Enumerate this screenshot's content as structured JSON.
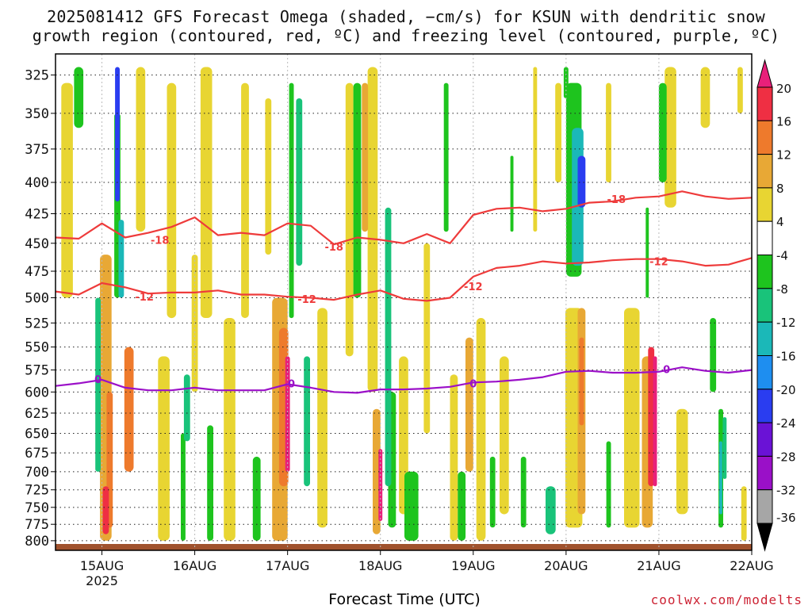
{
  "chart_data": {
    "type": "heatmap",
    "title_lines": [
      "2025081412 GFS Forecast Omega (shaded, −cm/s) for KSUN with dendritic snow",
      "growth region (contoured, red, ºC) and freezing level (contoured, purple, ºC)"
    ],
    "xlabel": "Forecast Time (UTC)",
    "credit": "coolwx.com/modelts",
    "x_ticks": [
      {
        "label": "15AUG",
        "sub": "2025",
        "t": 12
      },
      {
        "label": "16AUG",
        "sub": "",
        "t": 36
      },
      {
        "label": "17AUG",
        "sub": "",
        "t": 60
      },
      {
        "label": "18AUG",
        "sub": "",
        "t": 84
      },
      {
        "label": "19AUG",
        "sub": "",
        "t": 108
      },
      {
        "label": "20AUG",
        "sub": "",
        "t": 132
      },
      {
        "label": "21AUG",
        "sub": "",
        "t": 156
      },
      {
        "label": "22AUG",
        "sub": "",
        "t": 180
      }
    ],
    "x_range_hours": [
      0,
      180
    ],
    "y_range_hpa": [
      312,
      815
    ],
    "y_ticks": [
      325,
      350,
      375,
      400,
      425,
      450,
      475,
      500,
      525,
      550,
      575,
      600,
      625,
      650,
      675,
      700,
      725,
      750,
      775,
      800
    ],
    "colorbar": {
      "labels": [
        "20",
        "16",
        "12",
        "8",
        "4",
        "-4",
        "-8",
        "-12",
        "-16",
        "-20",
        "-24",
        "-28",
        "-32",
        "-36"
      ],
      "bins": [
        {
          "low": 16,
          "high": 20,
          "color": "#ef2f43"
        },
        {
          "low": 12,
          "high": 16,
          "color": "#ee7a2c"
        },
        {
          "low": 8,
          "high": 12,
          "color": "#e8a835"
        },
        {
          "low": 4,
          "high": 8,
          "color": "#e8d532"
        },
        {
          "low": -4,
          "high": 4,
          "color": "#ffffff"
        },
        {
          "low": -8,
          "high": -4,
          "color": "#1ec41e"
        },
        {
          "low": -12,
          "high": -8,
          "color": "#19c37a"
        },
        {
          "low": -16,
          "high": -12,
          "color": "#1bb8b8"
        },
        {
          "low": -20,
          "high": -16,
          "color": "#1e8ef0"
        },
        {
          "low": -24,
          "high": -20,
          "color": "#2a3df0"
        },
        {
          "low": -28,
          "high": -24,
          "color": "#6a12d6"
        },
        {
          "low": -32,
          "high": -28,
          "color": "#9a10c8"
        },
        {
          "low": -36,
          "high": -32,
          "color": "#a6a6a6"
        }
      ],
      "over_color": "#e8207a",
      "under_color": "#000000"
    },
    "shaded_features": [
      {
        "t": 13,
        "p1": 460,
        "p2": 800,
        "w": 1.5,
        "v": 8
      },
      {
        "t": 13,
        "p1": 720,
        "p2": 790,
        "w": 0.8,
        "v": 18
      },
      {
        "t": 14,
        "p1": 600,
        "p2": 780,
        "w": 0.8,
        "v": 14
      },
      {
        "t": 11,
        "p1": 500,
        "p2": 700,
        "w": 0.7,
        "v": -10
      },
      {
        "t": 16,
        "p1": 320,
        "p2": 415,
        "w": 0.6,
        "v": -22
      },
      {
        "t": 16,
        "p1": 350,
        "p2": 500,
        "w": 0.8,
        "v": -8
      },
      {
        "t": 17,
        "p1": 430,
        "p2": 500,
        "w": 0.7,
        "v": -14
      },
      {
        "t": 19,
        "p1": 550,
        "p2": 700,
        "w": 1.2,
        "v": 12
      },
      {
        "t": 6,
        "p1": 320,
        "p2": 360,
        "w": 1.2,
        "v": -6
      },
      {
        "t": 3,
        "p1": 330,
        "p2": 500,
        "w": 1.5,
        "v": 5
      },
      {
        "t": 22,
        "p1": 320,
        "p2": 440,
        "w": 1.2,
        "v": 5
      },
      {
        "t": 28,
        "p1": 560,
        "p2": 800,
        "w": 1.5,
        "v": 5
      },
      {
        "t": 30,
        "p1": 330,
        "p2": 520,
        "w": 1.2,
        "v": 6
      },
      {
        "t": 33,
        "p1": 650,
        "p2": 800,
        "w": 0.6,
        "v": -6
      },
      {
        "t": 34,
        "p1": 580,
        "p2": 660,
        "w": 0.8,
        "v": -10
      },
      {
        "t": 39,
        "p1": 320,
        "p2": 520,
        "w": 1.5,
        "v": 5
      },
      {
        "t": 40,
        "p1": 640,
        "p2": 800,
        "w": 0.8,
        "v": -8
      },
      {
        "t": 36,
        "p1": 460,
        "p2": 600,
        "w": 0.8,
        "v": 6
      },
      {
        "t": 45,
        "p1": 520,
        "p2": 800,
        "w": 1.5,
        "v": 5
      },
      {
        "t": 49,
        "p1": 330,
        "p2": 520,
        "w": 1.0,
        "v": 5
      },
      {
        "t": 52,
        "p1": 680,
        "p2": 800,
        "w": 1.0,
        "v": -6
      },
      {
        "t": 55,
        "p1": 340,
        "p2": 460,
        "w": 0.8,
        "v": 5
      },
      {
        "t": 58,
        "p1": 500,
        "p2": 800,
        "w": 2.0,
        "v": 10
      },
      {
        "t": 59,
        "p1": 530,
        "p2": 720,
        "w": 1.2,
        "v": 14
      },
      {
        "t": 60,
        "p1": 560,
        "p2": 700,
        "w": 0.6,
        "v": 20
      },
      {
        "t": 61,
        "p1": 330,
        "p2": 520,
        "w": 0.6,
        "v": -6
      },
      {
        "t": 63,
        "p1": 340,
        "p2": 470,
        "w": 0.8,
        "v": -10
      },
      {
        "t": 65,
        "p1": 560,
        "p2": 720,
        "w": 0.8,
        "v": -10
      },
      {
        "t": 69,
        "p1": 510,
        "p2": 780,
        "w": 1.3,
        "v": 5
      },
      {
        "t": 76,
        "p1": 330,
        "p2": 560,
        "w": 1.0,
        "v": 5
      },
      {
        "t": 78,
        "p1": 330,
        "p2": 500,
        "w": 1.0,
        "v": -6
      },
      {
        "t": 80,
        "p1": 330,
        "p2": 440,
        "w": 0.8,
        "v": 8
      },
      {
        "t": 82,
        "p1": 320,
        "p2": 600,
        "w": 1.3,
        "v": 6
      },
      {
        "t": 83,
        "p1": 620,
        "p2": 790,
        "w": 1.0,
        "v": 10
      },
      {
        "t": 84,
        "p1": 670,
        "p2": 770,
        "w": 0.5,
        "v": 20
      },
      {
        "t": 86,
        "p1": 420,
        "p2": 720,
        "w": 0.8,
        "v": -12
      },
      {
        "t": 87,
        "p1": 600,
        "p2": 780,
        "w": 1.0,
        "v": -8
      },
      {
        "t": 90,
        "p1": 560,
        "p2": 760,
        "w": 1.2,
        "v": 5
      },
      {
        "t": 92,
        "p1": 700,
        "p2": 800,
        "w": 1.8,
        "v": -6
      },
      {
        "t": 96,
        "p1": 450,
        "p2": 650,
        "w": 0.8,
        "v": 5
      },
      {
        "t": 101,
        "p1": 330,
        "p2": 440,
        "w": 0.6,
        "v": -6
      },
      {
        "t": 103,
        "p1": 580,
        "p2": 800,
        "w": 1.0,
        "v": 5
      },
      {
        "t": 105,
        "p1": 700,
        "p2": 800,
        "w": 1.0,
        "v": -8
      },
      {
        "t": 107,
        "p1": 540,
        "p2": 700,
        "w": 1.0,
        "v": 10
      },
      {
        "t": 110,
        "p1": 520,
        "p2": 800,
        "w": 1.2,
        "v": 5
      },
      {
        "t": 113,
        "p1": 680,
        "p2": 780,
        "w": 0.7,
        "v": -6
      },
      {
        "t": 116,
        "p1": 560,
        "p2": 760,
        "w": 1.2,
        "v": 5
      },
      {
        "t": 118,
        "p1": 380,
        "p2": 440,
        "w": 0.4,
        "v": -6
      },
      {
        "t": 121,
        "p1": 680,
        "p2": 780,
        "w": 0.7,
        "v": -6
      },
      {
        "t": 124,
        "p1": 320,
        "p2": 440,
        "w": 0.5,
        "v": 5
      },
      {
        "t": 128,
        "p1": 720,
        "p2": 790,
        "w": 1.3,
        "v": -10
      },
      {
        "t": 130,
        "p1": 330,
        "p2": 400,
        "w": 0.8,
        "v": 5
      },
      {
        "t": 132,
        "p1": 320,
        "p2": 340,
        "w": 0.6,
        "v": -6
      },
      {
        "t": 134,
        "p1": 330,
        "p2": 480,
        "w": 2.0,
        "v": -8
      },
      {
        "t": 135,
        "p1": 360,
        "p2": 470,
        "w": 1.5,
        "v": -14
      },
      {
        "t": 136,
        "p1": 380,
        "p2": 420,
        "w": 1.0,
        "v": -22
      },
      {
        "t": 134,
        "p1": 510,
        "p2": 780,
        "w": 2.2,
        "v": 5
      },
      {
        "t": 136,
        "p1": 510,
        "p2": 760,
        "w": 1.0,
        "v": 10
      },
      {
        "t": 136,
        "p1": 540,
        "p2": 640,
        "w": 0.6,
        "v": 14
      },
      {
        "t": 143,
        "p1": 330,
        "p2": 400,
        "w": 0.7,
        "v": 5
      },
      {
        "t": 143,
        "p1": 660,
        "p2": 780,
        "w": 0.6,
        "v": -6
      },
      {
        "t": 149,
        "p1": 510,
        "p2": 780,
        "w": 2.0,
        "v": 5
      },
      {
        "t": 153,
        "p1": 560,
        "p2": 780,
        "w": 1.4,
        "v": 10
      },
      {
        "t": 154,
        "p1": 550,
        "p2": 720,
        "w": 0.8,
        "v": 16
      },
      {
        "t": 155,
        "p1": 560,
        "p2": 720,
        "w": 0.5,
        "v": 20
      },
      {
        "t": 153,
        "p1": 420,
        "p2": 500,
        "w": 0.4,
        "v": -6
      },
      {
        "t": 157,
        "p1": 330,
        "p2": 400,
        "w": 1.0,
        "v": -6
      },
      {
        "t": 159,
        "p1": 320,
        "p2": 420,
        "w": 1.5,
        "v": 5
      },
      {
        "t": 162,
        "p1": 620,
        "p2": 760,
        "w": 1.5,
        "v": 5
      },
      {
        "t": 168,
        "p1": 320,
        "p2": 360,
        "w": 1.2,
        "v": 5
      },
      {
        "t": 170,
        "p1": 520,
        "p2": 600,
        "w": 0.8,
        "v": -6
      },
      {
        "t": 172,
        "p1": 620,
        "p2": 780,
        "w": 0.6,
        "v": -8
      },
      {
        "t": 172,
        "p1": 660,
        "p2": 760,
        "w": 0.4,
        "v": -16
      },
      {
        "t": 173,
        "p1": 630,
        "p2": 710,
        "w": 0.5,
        "v": -12
      },
      {
        "t": 178,
        "p1": 720,
        "p2": 800,
        "w": 0.7,
        "v": 5
      },
      {
        "t": 177,
        "p1": 320,
        "p2": 350,
        "w": 0.7,
        "v": 5
      }
    ],
    "series": [
      {
        "label": "-18",
        "color": "#ee3b3b",
        "label_at": [
          {
            "t": 27,
            "p": 447
          },
          {
            "t": 72,
            "p": 453
          },
          {
            "t": 145,
            "p": 413
          }
        ],
        "t": [
          0,
          6,
          12,
          18,
          24,
          30,
          36,
          42,
          48,
          54,
          60,
          66,
          72,
          78,
          84,
          90,
          96,
          102,
          108,
          114,
          120,
          126,
          132,
          138,
          144,
          150,
          156,
          162,
          168,
          174,
          180
        ],
        "p": [
          445,
          446,
          433,
          445,
          441,
          436,
          428,
          443,
          441,
          443,
          433,
          435,
          451,
          445,
          447,
          450,
          442,
          450,
          426,
          421,
          420,
          423,
          421,
          416,
          415,
          412,
          411,
          407,
          411,
          413,
          412
        ]
      },
      {
        "label": "-12",
        "color": "#ee3b3b",
        "label_at": [
          {
            "t": 23,
            "p": 499
          },
          {
            "t": 65,
            "p": 501
          },
          {
            "t": 108,
            "p": 489
          },
          {
            "t": 156,
            "p": 466
          }
        ],
        "t": [
          0,
          6,
          12,
          18,
          24,
          30,
          36,
          42,
          48,
          54,
          60,
          66,
          72,
          78,
          84,
          90,
          96,
          102,
          108,
          114,
          120,
          126,
          132,
          138,
          144,
          150,
          156,
          162,
          168,
          174,
          180
        ],
        "p": [
          494,
          497,
          486,
          490,
          496,
          495,
          495,
          493,
          497,
          497,
          499,
          500,
          502,
          497,
          493,
          501,
          503,
          500,
          480,
          472,
          470,
          466,
          468,
          467,
          465,
          464,
          464,
          466,
          470,
          469,
          463
        ]
      },
      {
        "label": "0",
        "color": "#9b10c8",
        "label_at": [
          {
            "t": 11,
            "p": 585
          },
          {
            "t": 61,
            "p": 590
          },
          {
            "t": 108,
            "p": 590
          },
          {
            "t": 158,
            "p": 574
          }
        ],
        "t": [
          0,
          6,
          12,
          18,
          24,
          30,
          36,
          42,
          48,
          54,
          60,
          66,
          72,
          78,
          84,
          90,
          96,
          102,
          108,
          114,
          120,
          126,
          132,
          138,
          144,
          150,
          156,
          162,
          168,
          174,
          180
        ],
        "p": [
          593,
          590,
          586,
          595,
          598,
          598,
          595,
          598,
          598,
          598,
          591,
          595,
          600,
          601,
          597,
          597,
          596,
          594,
          589,
          588,
          586,
          583,
          577,
          576,
          578,
          578,
          577,
          572,
          576,
          578,
          575
        ]
      }
    ]
  }
}
